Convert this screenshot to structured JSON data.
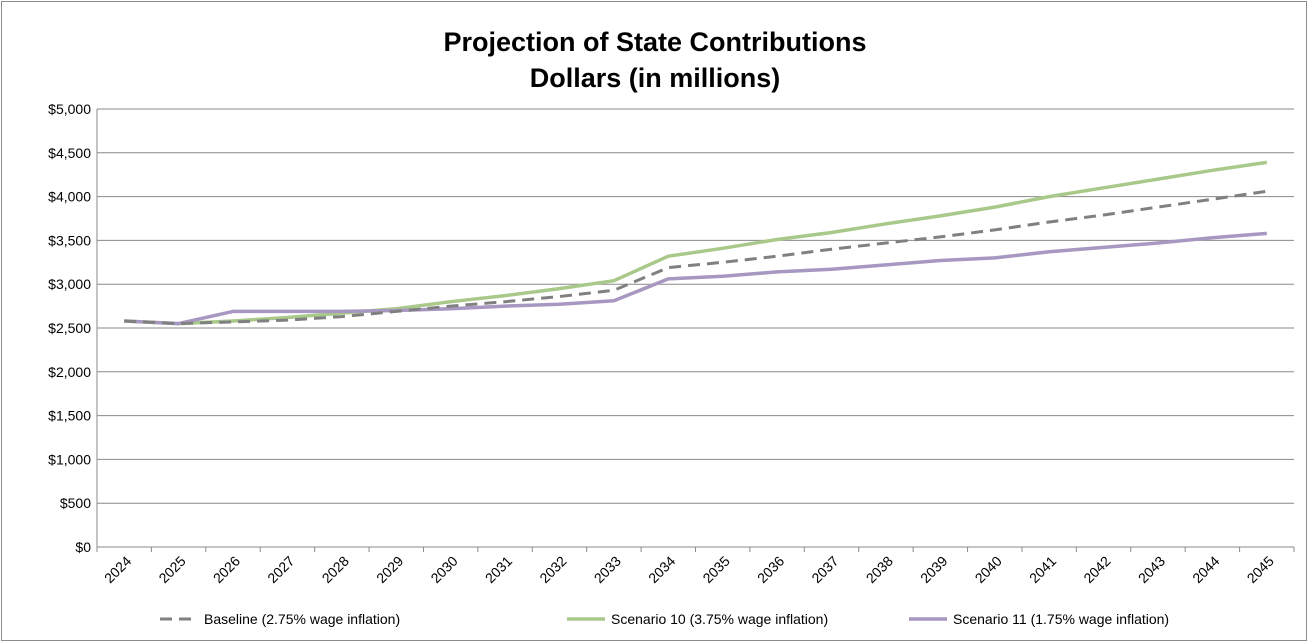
{
  "chart_data": {
    "type": "line",
    "title_lines": [
      "Projection of State Contributions",
      "Dollars (in millions)"
    ],
    "xlabel": "",
    "ylabel": "",
    "ylim": [
      0,
      5000
    ],
    "y_ticks": [
      "$0",
      "$500",
      "$1,000",
      "$1,500",
      "$2,000",
      "$2,500",
      "$3,000",
      "$3,500",
      "$4,000",
      "$4,500",
      "$5,000"
    ],
    "categories": [
      "2024",
      "2025",
      "2026",
      "2027",
      "2028",
      "2029",
      "2030",
      "2031",
      "2032",
      "2033",
      "2034",
      "2035",
      "2036",
      "2037",
      "2038",
      "2039",
      "2040",
      "2041",
      "2042",
      "2043",
      "2044",
      "2045"
    ],
    "grid": true,
    "legend_position": "bottom",
    "series": [
      {
        "name": "Baseline (2.75% wage inflation)",
        "color": "#808080",
        "dash": true,
        "values": [
          2580,
          2550,
          2570,
          2590,
          2630,
          2690,
          2750,
          2800,
          2860,
          2930,
          3190,
          3250,
          3320,
          3400,
          3470,
          3540,
          3620,
          3710,
          3790,
          3880,
          3970,
          4060
        ]
      },
      {
        "name": "Scenario 10 (3.75% wage inflation)",
        "color": "#a9c98a",
        "dash": false,
        "values": [
          2580,
          2550,
          2580,
          2620,
          2670,
          2720,
          2800,
          2870,
          2950,
          3040,
          3320,
          3410,
          3510,
          3590,
          3690,
          3780,
          3880,
          4000,
          4100,
          4200,
          4300,
          4390
        ]
      },
      {
        "name": "Scenario 11 (1.75% wage inflation)",
        "color": "#a797c1",
        "dash": false,
        "values": [
          2580,
          2550,
          2690,
          2690,
          2690,
          2700,
          2720,
          2750,
          2770,
          2810,
          3060,
          3090,
          3140,
          3170,
          3220,
          3270,
          3300,
          3370,
          3420,
          3470,
          3530,
          3580
        ]
      }
    ]
  }
}
